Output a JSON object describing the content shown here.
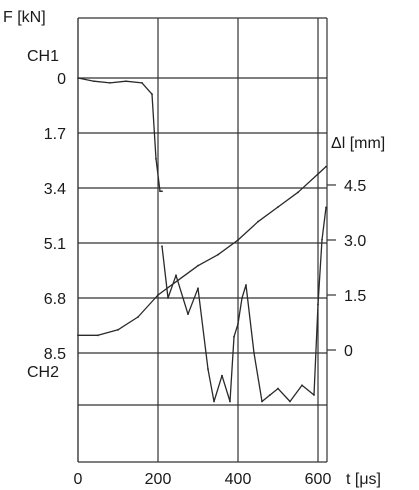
{
  "chart_data": {
    "type": "line",
    "title": "",
    "y_left_label": "F [kN]",
    "y_right_label": "Δl [mm]",
    "x_label": "t [μs]",
    "channel_labels": {
      "ch1": "CH1",
      "ch2": "CH2"
    },
    "x_ticks": [
      {
        "value": 0,
        "label": "0"
      },
      {
        "value": 200,
        "label": "200"
      },
      {
        "value": 400,
        "label": "400"
      },
      {
        "value": 600,
        "label": "600"
      }
    ],
    "xlim": [
      0,
      620
    ],
    "y_left_ticks": [
      {
        "value": 0,
        "label": "0"
      },
      {
        "value": 1.7,
        "label": "1.7"
      },
      {
        "value": 3.4,
        "label": "3.4"
      },
      {
        "value": 5.1,
        "label": "5.1"
      },
      {
        "value": 6.8,
        "label": "6.8"
      },
      {
        "value": 8.5,
        "label": "8.5"
      }
    ],
    "y_left_axis": "F [kN], increasing downward, 0 at top",
    "y_right_ticks": [
      {
        "value": 4.5,
        "label": "4.5"
      },
      {
        "value": 3.0,
        "label": "3.0"
      },
      {
        "value": 1.5,
        "label": "1.5"
      },
      {
        "value": 0,
        "label": "0"
      }
    ],
    "y_right_axis": "Δl [mm], increasing upward",
    "grid": true,
    "series": [
      {
        "name": "CH1",
        "axis": "left",
        "x": [
          0,
          40,
          80,
          120,
          160,
          185,
          195,
          205,
          210
        ],
        "y": [
          0.0,
          0.1,
          0.15,
          0.1,
          0.15,
          0.5,
          2.5,
          3.5,
          3.5
        ]
      },
      {
        "axis": "right",
        "x": [
          0,
          50,
          100,
          150,
          200,
          250,
          300,
          350,
          400,
          450,
          500,
          550,
          600,
          620
        ],
        "y": [
          0.4,
          0.4,
          0.55,
          0.9,
          1.5,
          1.9,
          2.3,
          2.6,
          3.0,
          3.5,
          3.9,
          4.3,
          4.8,
          5.0
        ]
      },
      {
        "name": "CH2",
        "axis": "left",
        "x": [
          210,
          225,
          245,
          275,
          300,
          325,
          340,
          360,
          380,
          390,
          400,
          410,
          420,
          440,
          460,
          480,
          500,
          530,
          560,
          590,
          600,
          610,
          620
        ],
        "y": [
          5.2,
          6.8,
          6.1,
          7.3,
          6.5,
          9.0,
          10.0,
          9.2,
          10.0,
          8.0,
          7.6,
          6.8,
          6.4,
          8.5,
          10.0,
          9.8,
          9.6,
          10.0,
          9.5,
          9.8,
          7.0,
          5.0,
          4.0
        ]
      }
    ]
  }
}
